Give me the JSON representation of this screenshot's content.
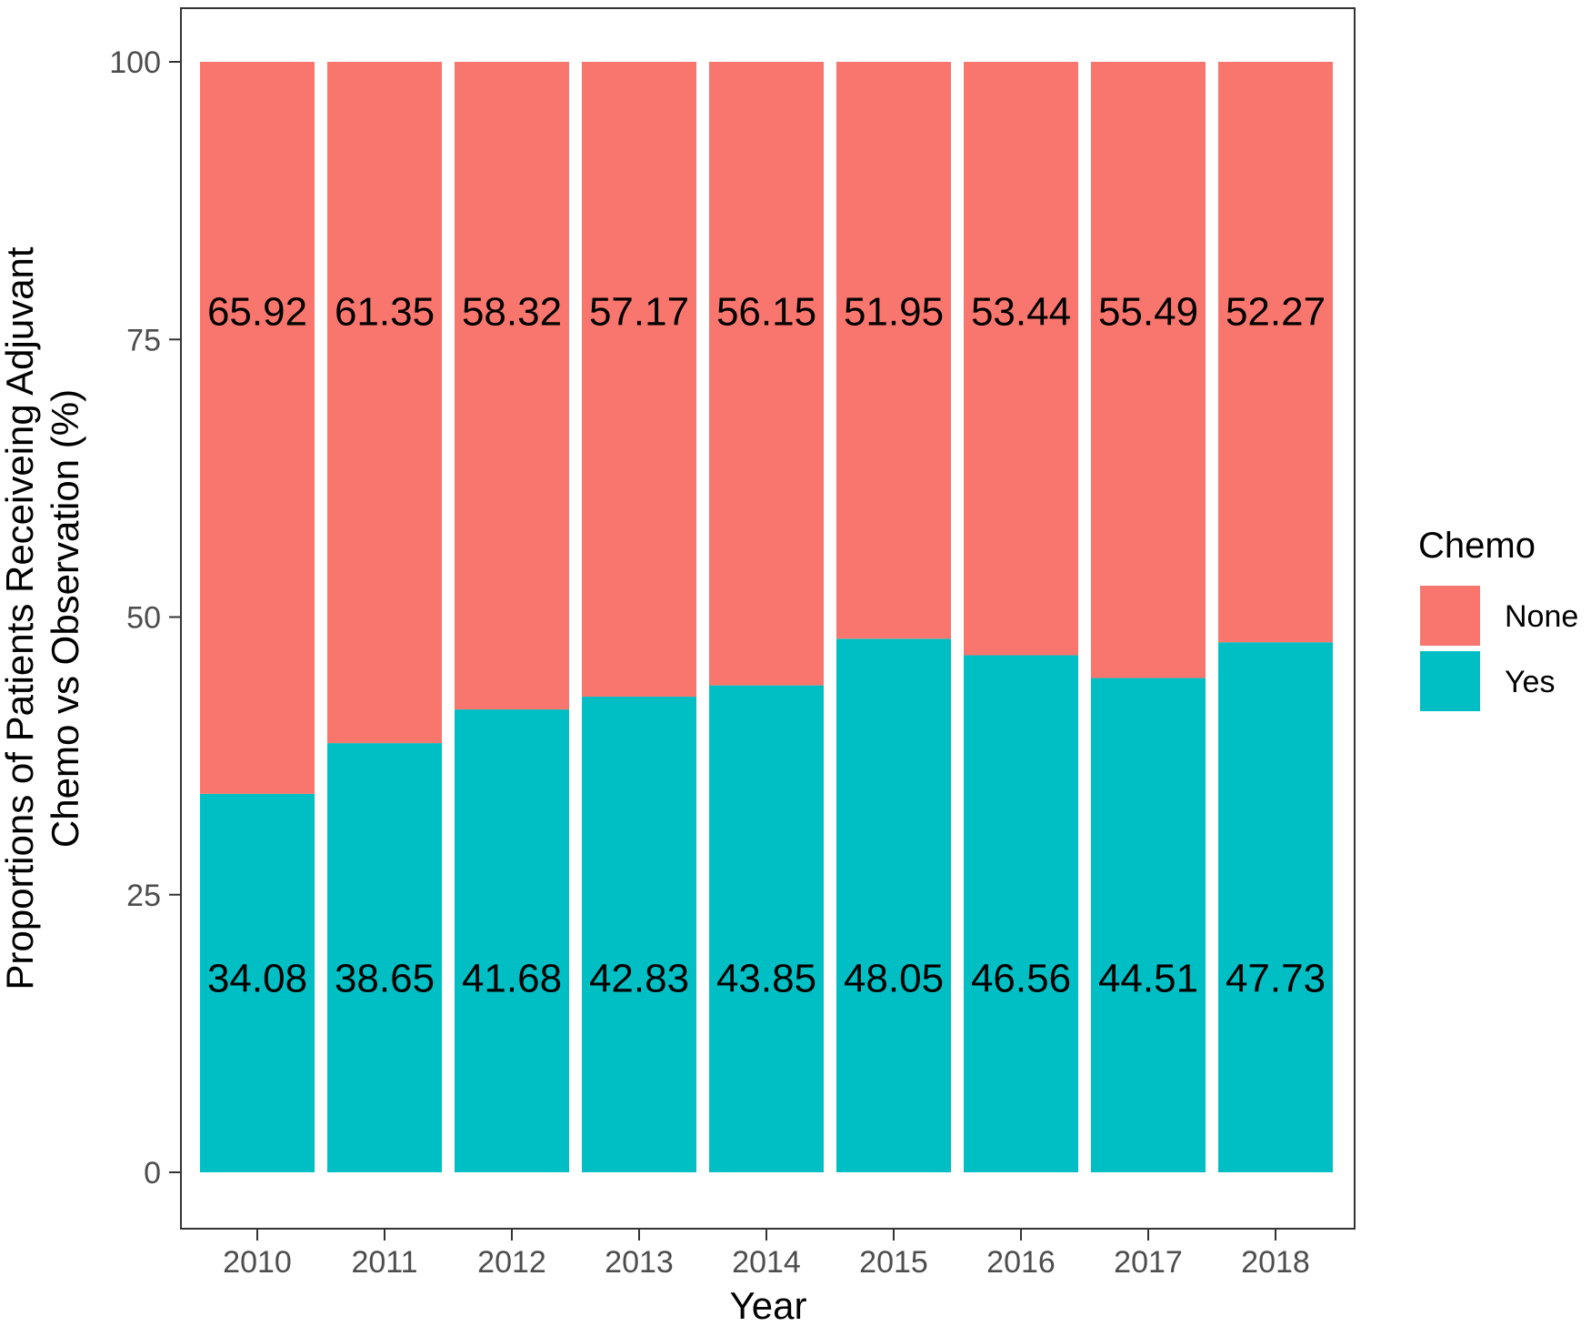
{
  "chart_data": {
    "type": "bar",
    "stacked": true,
    "categories": [
      "2010",
      "2011",
      "2012",
      "2013",
      "2014",
      "2015",
      "2016",
      "2017",
      "2018"
    ],
    "series": [
      {
        "name": "Yes",
        "color": "#00BFC4",
        "values": [
          34.08,
          38.65,
          41.68,
          42.83,
          43.85,
          48.05,
          46.56,
          44.51,
          47.73
        ]
      },
      {
        "name": "None",
        "color": "#F8766D",
        "values": [
          65.92,
          61.35,
          58.32,
          57.17,
          56.15,
          51.95,
          53.44,
          55.49,
          52.27
        ]
      }
    ],
    "title": "",
    "xlabel": "Year",
    "ylabel_line1": "Proportions of Patients Receiveing Adjuvant",
    "ylabel_line2": "Chemo vs Observation (%)",
    "ylim": [
      0,
      100
    ],
    "yticks": [
      "0",
      "25",
      "50",
      "75",
      "100"
    ],
    "ytick_values": [
      0,
      25,
      50,
      75,
      100
    ],
    "grid": false,
    "legend": {
      "title": "Chemo",
      "position": "right",
      "entries": [
        {
          "label": "None",
          "color": "#F8766D"
        },
        {
          "label": "Yes",
          "color": "#00BFC4"
        }
      ]
    }
  }
}
